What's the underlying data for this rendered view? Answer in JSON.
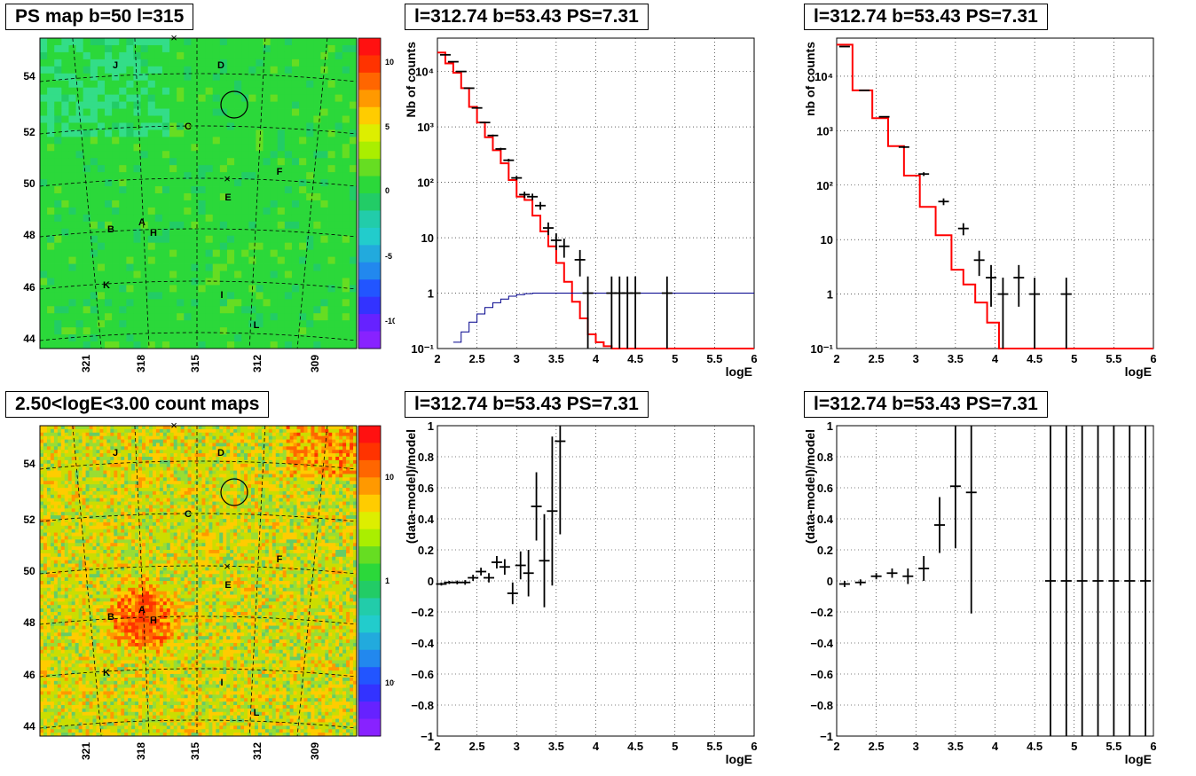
{
  "titles": {
    "map_top": "PS map b=50 l=315",
    "map_bottom": "2.50<logE<3.00 count maps",
    "spec1": "l=312.74 b=53.43 PS=7.31",
    "spec2": "l=312.74 b=53.43 PS=7.31",
    "res1": "l=312.74 b=53.43 PS=7.31",
    "res2": "l=312.74 b=53.43 PS=7.31"
  },
  "colors": {
    "data": "#000000",
    "model": "#ff0000",
    "efficiency": "#00008b",
    "grid": "#000000"
  },
  "map_labels": {
    "lat_ticks": [
      "54",
      "52",
      "50",
      "48",
      "46",
      "44"
    ],
    "lon_ticks": [
      "321",
      "318",
      "315",
      "312",
      "309"
    ],
    "sources": [
      "J",
      "D",
      "C",
      "F",
      "E",
      "A",
      "B",
      "H",
      "K",
      "I",
      "L"
    ],
    "colorbar_top": [
      "10",
      "5",
      "0",
      "-5",
      "-10"
    ],
    "colorbar_bottom": [
      "10",
      "1",
      "10⁻¹"
    ]
  },
  "chart_data": [
    {
      "type": "line",
      "name": "spectrum fine bins",
      "title": "l=312.74 b=53.43 PS=7.31",
      "xlabel": "logE",
      "ylabel": "Nb of counts",
      "xlim": [
        2,
        6
      ],
      "ylim": [
        0.1,
        40000
      ],
      "yscale": "log",
      "xticks": [
        "2",
        "2.5",
        "3",
        "3.5",
        "4",
        "4.5",
        "5",
        "5.5",
        "6"
      ],
      "yticks": [
        "10⁻¹",
        "1",
        "10",
        "10²",
        "10³",
        "10⁴"
      ],
      "grid": true,
      "series": [
        {
          "name": "data",
          "style": "errorbar",
          "x": [
            2.1,
            2.2,
            2.3,
            2.4,
            2.5,
            2.6,
            2.7,
            2.8,
            2.9,
            3.0,
            3.1,
            3.2,
            3.3,
            3.4,
            3.5,
            3.6,
            3.8,
            3.9,
            4.2,
            4.3,
            4.4,
            4.5,
            4.9
          ],
          "y": [
            20000,
            15000,
            10000,
            5000,
            2200,
            1200,
            700,
            400,
            250,
            120,
            60,
            55,
            38,
            15,
            9,
            7,
            4,
            1,
            1,
            1,
            1,
            1,
            1
          ]
        },
        {
          "name": "model",
          "style": "step",
          "edges": [
            2.0,
            2.1,
            2.2,
            2.3,
            2.4,
            2.5,
            2.6,
            2.7,
            2.8,
            2.9,
            3.0,
            3.1,
            3.2,
            3.3,
            3.4,
            3.5,
            3.6,
            3.7,
            3.8,
            3.9,
            4.0,
            4.1,
            4.2,
            4.3,
            6.0
          ],
          "values": [
            22000,
            14000,
            9500,
            5000,
            2300,
            1200,
            650,
            380,
            220,
            110,
            55,
            48,
            25,
            13,
            7,
            3.5,
            1.6,
            0.7,
            0.35,
            0.18,
            0.13,
            0.11,
            0.1,
            0.1
          ]
        },
        {
          "name": "efficiency",
          "style": "step",
          "edges": [
            2.2,
            2.3,
            2.4,
            2.5,
            2.6,
            2.7,
            2.8,
            2.9,
            3.0,
            3.1,
            3.2,
            3.3,
            6.0
          ],
          "values": [
            0.13,
            0.2,
            0.3,
            0.42,
            0.55,
            0.67,
            0.78,
            0.88,
            0.94,
            0.98,
            1.0,
            1.0
          ]
        }
      ]
    },
    {
      "type": "line",
      "name": "spectrum coarse bins",
      "title": "l=312.74 b=53.43 PS=7.31",
      "xlabel": "logE",
      "ylabel": "nb of counts",
      "xlim": [
        2,
        6
      ],
      "ylim": [
        0.1,
        50000
      ],
      "yscale": "log",
      "xticks": [
        "2",
        "2.5",
        "3",
        "3.5",
        "4",
        "4.5",
        "5",
        "5.5",
        "6"
      ],
      "yticks": [
        "10⁻¹",
        "1",
        "10",
        "10²",
        "10³",
        "10⁴"
      ],
      "grid": true,
      "series": [
        {
          "name": "data",
          "style": "errorbar",
          "x": [
            2.1,
            2.35,
            2.6,
            2.85,
            3.1,
            3.35,
            3.6,
            3.8,
            3.95,
            4.1,
            4.3,
            4.5,
            4.9
          ],
          "y": [
            35000,
            5500,
            1800,
            500,
            160,
            50,
            16,
            4.2,
            2,
            1,
            2,
            1,
            1
          ]
        },
        {
          "name": "model",
          "style": "step",
          "edges": [
            2.0,
            2.2,
            2.45,
            2.65,
            2.85,
            3.05,
            3.25,
            3.45,
            3.6,
            3.75,
            3.9,
            4.05,
            4.15,
            6.0
          ],
          "values": [
            38000,
            5500,
            1700,
            520,
            150,
            40,
            12,
            2.8,
            1.5,
            0.7,
            0.3,
            0.1,
            0.1
          ]
        }
      ]
    },
    {
      "type": "scatter",
      "name": "residuals fine bins",
      "title": "l=312.74 b=53.43 PS=7.31",
      "xlabel": "logE",
      "ylabel": "(data-model)/model",
      "xlim": [
        2,
        6
      ],
      "ylim": [
        -1,
        1
      ],
      "xticks": [
        "2",
        "2.5",
        "3",
        "3.5",
        "4",
        "4.5",
        "5",
        "5.5",
        "6"
      ],
      "yticks": [
        "1",
        "0.8",
        "0.6",
        "0.4",
        "0.2",
        "0",
        "−0.2",
        "−0.4",
        "−0.6",
        "−0.8",
        "−1"
      ],
      "grid": true,
      "series": [
        {
          "name": "data",
          "style": "errorbar",
          "x": [
            2.05,
            2.15,
            2.25,
            2.35,
            2.45,
            2.55,
            2.65,
            2.75,
            2.85,
            2.95,
            3.05,
            3.15,
            3.25,
            3.35,
            3.45,
            3.55
          ],
          "y": [
            -0.02,
            -0.01,
            -0.01,
            -0.01,
            0.02,
            0.06,
            0.02,
            0.12,
            0.09,
            -0.08,
            0.1,
            0.05,
            0.48,
            0.13,
            0.45,
            0.9
          ],
          "yerr": [
            0.01,
            0.01,
            0.012,
            0.015,
            0.02,
            0.025,
            0.03,
            0.04,
            0.05,
            0.07,
            0.09,
            0.15,
            0.22,
            0.3,
            0.48,
            0.6
          ]
        }
      ]
    },
    {
      "type": "scatter",
      "name": "residuals coarse bins",
      "title": "l=312.74 b=53.43 PS=7.31",
      "xlabel": "logE",
      "ylabel": "(data-model)/model",
      "xlim": [
        2,
        6
      ],
      "ylim": [
        -1,
        1
      ],
      "xticks": [
        "2",
        "2.5",
        "3",
        "3.5",
        "4",
        "4.5",
        "5",
        "5.5",
        "6"
      ],
      "yticks": [
        "1",
        "0.8",
        "0.6",
        "0.4",
        "0.2",
        "0",
        "−0.2",
        "−0.4",
        "−0.6",
        "−0.8",
        "−1"
      ],
      "grid": true,
      "series": [
        {
          "name": "data",
          "style": "errorbar",
          "x": [
            2.1,
            2.3,
            2.5,
            2.7,
            2.9,
            3.1,
            3.3,
            3.5,
            3.7,
            4.7,
            4.9,
            5.1,
            5.3,
            5.5,
            5.7,
            5.9
          ],
          "y": [
            -0.02,
            -0.01,
            0.03,
            0.05,
            0.03,
            0.08,
            0.36,
            0.61,
            0.57,
            0,
            0,
            0,
            0,
            0,
            0,
            0
          ],
          "yerr": [
            0.02,
            0.02,
            0.02,
            0.03,
            0.05,
            0.08,
            0.18,
            0.4,
            0.78,
            1.2,
            1.2,
            1.2,
            1.2,
            1.2,
            1.2,
            1.2
          ]
        }
      ]
    }
  ]
}
